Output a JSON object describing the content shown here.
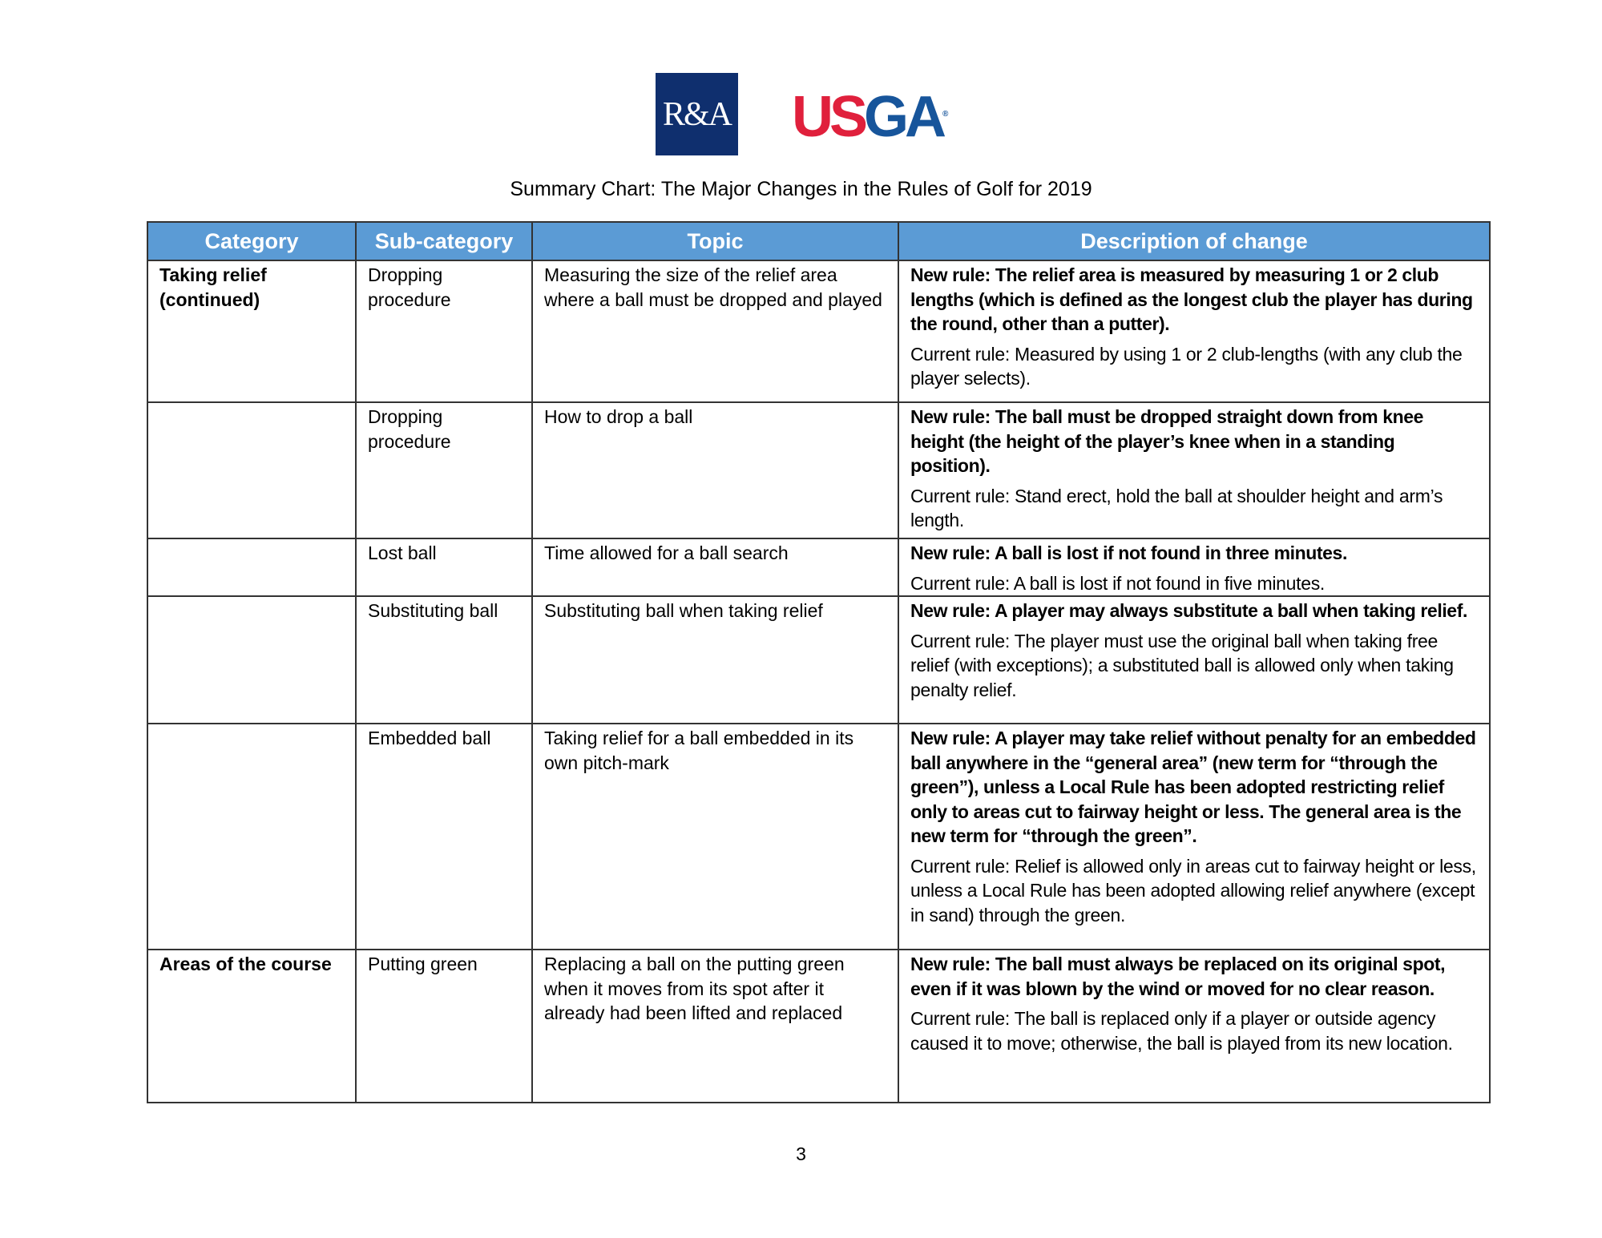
{
  "logos": {
    "ra": "R&A",
    "usga_us": "US",
    "usga_ga": "GA",
    "usga_mark": "®"
  },
  "title": "Summary Chart: The Major Changes in the Rules of Golf for 2019",
  "table": {
    "headers": [
      "Category",
      "Sub-category",
      "Topic",
      "Description of change"
    ],
    "rows": [
      {
        "category": "Taking relief (continued)",
        "subcategory": "Dropping procedure",
        "topic": "Measuring the size of the relief area where a ball must be dropped and played",
        "new_rule": "New rule: The relief area is measured by measuring 1 or 2 club lengths (which is defined as the longest club the player has during the round, other than a putter).",
        "current_rule": "Current rule: Measured by using 1 or 2 club-lengths (with any club the player selects)."
      },
      {
        "category": "",
        "subcategory": "Dropping procedure",
        "topic": "How to drop a ball",
        "new_rule": "New rule: The ball must be dropped straight down from knee height (the height of the player’s knee when in a standing position).",
        "current_rule": "Current rule: Stand erect, hold the ball at shoulder height and arm’s length."
      },
      {
        "category": "",
        "subcategory": "Lost ball",
        "topic": "Time allowed for a ball search",
        "new_rule": "New rule: A ball is lost if not found in three minutes.",
        "current_rule": "Current rule: A ball is lost if not found in five minutes."
      },
      {
        "category": "",
        "subcategory": "Substituting ball",
        "topic": "Substituting ball when taking relief",
        "new_rule": "New rule: A player may always substitute a ball when taking relief.",
        "current_rule": "Current rule: The player must use the original ball when taking free relief (with exceptions); a substituted ball is allowed only when taking penalty relief."
      },
      {
        "category": "",
        "subcategory": "Embedded ball",
        "topic": "Taking relief for a ball embedded in its own pitch-mark",
        "new_rule": "New rule: A player may take relief without penalty for an embedded ball anywhere in the “general area” (new term for “through the green”), unless a Local Rule has been adopted restricting relief only to areas cut to fairway height or less. The general area is the new term for “through the green”.",
        "current_rule": "Current rule: Relief is allowed only in areas cut to fairway height or less, unless a Local Rule has been adopted allowing relief anywhere (except in sand) through the green."
      },
      {
        "category": "Areas of the course",
        "subcategory": "Putting green",
        "topic": "Replacing a ball on the putting green when it moves from its spot after it already had been lifted and replaced",
        "new_rule": "New rule: The ball must always be replaced on its original spot, even if it was blown by the wind or moved for no clear reason.",
        "current_rule": "Current rule: The ball is replaced only if a player or outside agency caused it to move; otherwise, the ball is played from its new location."
      }
    ]
  },
  "page_number": "3"
}
